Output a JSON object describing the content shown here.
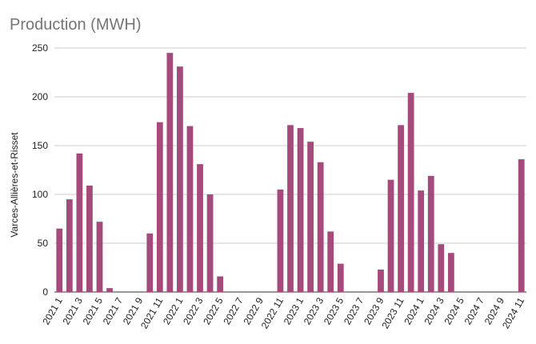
{
  "chart_data": {
    "type": "bar",
    "title": "Production (MWH)",
    "xlabel": "",
    "ylabel": "Varces-Allières-et-Risset",
    "ylim": [
      0,
      250
    ],
    "yticks": [
      0,
      50,
      100,
      150,
      200,
      250
    ],
    "grid": true,
    "bar_color": "#a54b7b",
    "categories": [
      "2021 1",
      "2021 2",
      "2021 3",
      "2021 4",
      "2021 5",
      "2021 6",
      "2021 7",
      "2021 8",
      "2021 9",
      "2021 10",
      "2021 11",
      "2021 12",
      "2022 1",
      "2022 2",
      "2022 3",
      "2022 4",
      "2022 5",
      "2022 6",
      "2022 7",
      "2022 8",
      "2022 9",
      "2022 10",
      "2022 11",
      "2022 12",
      "2023 1",
      "2023 2",
      "2023 3",
      "2023 4",
      "2023 5",
      "2023 6",
      "2023 7",
      "2023 8",
      "2023 9",
      "2023 10",
      "2023 11",
      "2023 12",
      "2024 1",
      "2024 2",
      "2024 3",
      "2024 4",
      "2024 5",
      "2024 6",
      "2024 7",
      "2024 8",
      "2024 9",
      "2024 10",
      "2024 11"
    ],
    "tick_labels": [
      "2021 1",
      "2021 3",
      "2021 5",
      "2021 7",
      "2021 9",
      "2021 11",
      "2022 1",
      "2022 3",
      "2022 5",
      "2022 7",
      "2022 9",
      "2022 11",
      "2023 1",
      "2023 3",
      "2023 5",
      "2023 7",
      "2023 9",
      "2023 11",
      "2024 1",
      "2024 3",
      "2024 5",
      "2024 7",
      "2024 9",
      "2024 11"
    ],
    "values": [
      65,
      95,
      142,
      109,
      72,
      4,
      0,
      0,
      0,
      60,
      174,
      245,
      231,
      170,
      131,
      100,
      16,
      0,
      0,
      0,
      0,
      0,
      105,
      171,
      168,
      154,
      133,
      62,
      29,
      0,
      0,
      0,
      23,
      115,
      171,
      204,
      104,
      119,
      49,
      40,
      0,
      0,
      0,
      0,
      0,
      0,
      136
    ]
  }
}
